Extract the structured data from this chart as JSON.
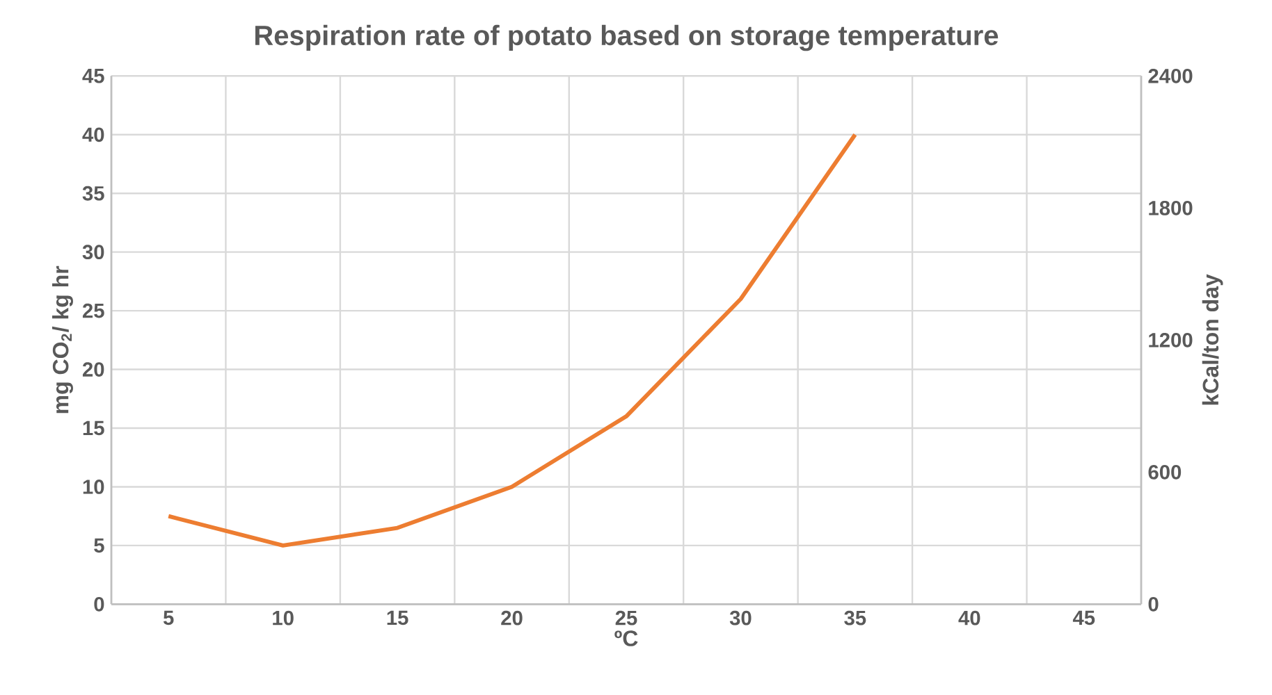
{
  "chart_data": {
    "type": "line",
    "title": "Respiration rate of potato based on storage temperature",
    "xlabel": "ºC",
    "ylabel": "mg CO$_{2}$/ kg hr",
    "y2label": "kCal/ton day",
    "categories": [
      "5",
      "10",
      "15",
      "20",
      "25",
      "30",
      "35",
      "40",
      "45"
    ],
    "series": [
      {
        "color": "#ed7d31",
        "values": [
          7.5,
          5,
          6.5,
          10,
          16,
          26,
          40,
          null,
          null
        ]
      }
    ],
    "ylim": [
      0,
      45
    ],
    "yticks": [
      0,
      5,
      10,
      15,
      20,
      25,
      30,
      35,
      40,
      45
    ],
    "y2lim": [
      0,
      2400
    ],
    "y2ticks": [
      0,
      600,
      1200,
      1800,
      2400
    ],
    "grid": true,
    "marker": "none",
    "line_style": "solid"
  }
}
